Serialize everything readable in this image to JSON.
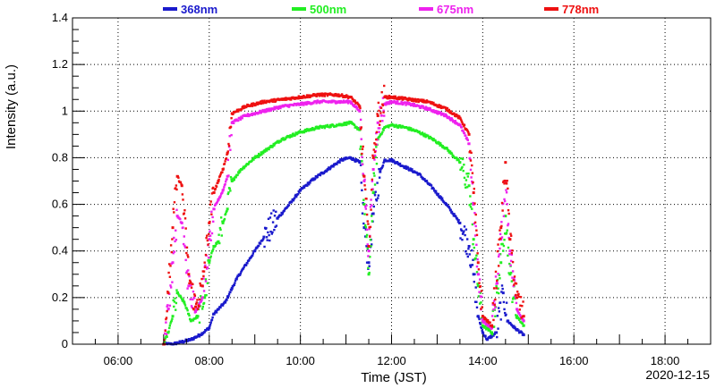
{
  "chart_data": {
    "type": "scatter",
    "xlabel": "Time (JST)",
    "ylabel": "Intensity (a.u.)",
    "date": "2020-12-15",
    "xlim": [
      5.0,
      19.0
    ],
    "ylim": [
      0,
      1.4
    ],
    "x_ticks": [
      6,
      8,
      10,
      12,
      14,
      16,
      18
    ],
    "x_tick_labels": [
      "06:00",
      "08:00",
      "10:00",
      "12:00",
      "14:00",
      "16:00",
      "18:00"
    ],
    "y_ticks": [
      0,
      0.2,
      0.4,
      0.6,
      0.8,
      1.0,
      1.2,
      1.4
    ],
    "y_tick_labels": [
      "0",
      "0.2",
      "0.4",
      "0.6",
      "0.8",
      "1",
      "1.2",
      "1.4"
    ],
    "grid": true,
    "legend_position": "top",
    "series": [
      {
        "name": "368nm",
        "color": "#1a1acc",
        "x": [
          7.0,
          7.2,
          7.4,
          7.6,
          7.8,
          8.0,
          8.1,
          8.2,
          8.35,
          8.5,
          8.6,
          8.8,
          9.0,
          9.2,
          9.5,
          9.8,
          10.0,
          10.3,
          10.6,
          10.9,
          11.1,
          11.3,
          11.4,
          11.5,
          11.6,
          11.75,
          11.85,
          12.0,
          12.3,
          12.6,
          12.9,
          13.2,
          13.5,
          13.7,
          13.8,
          13.9,
          14.0,
          14.1,
          14.3,
          14.45,
          14.55,
          14.7,
          14.9
        ],
        "y": [
          0.0,
          0.0,
          0.01,
          0.02,
          0.04,
          0.07,
          0.13,
          0.15,
          0.18,
          0.24,
          0.28,
          0.34,
          0.4,
          0.46,
          0.54,
          0.61,
          0.66,
          0.71,
          0.75,
          0.79,
          0.8,
          0.78,
          0.5,
          0.35,
          0.56,
          0.74,
          0.79,
          0.79,
          0.76,
          0.73,
          0.67,
          0.6,
          0.52,
          0.42,
          0.3,
          0.12,
          0.05,
          0.02,
          0.05,
          0.22,
          0.1,
          0.07,
          0.04
        ]
      },
      {
        "name": "500nm",
        "color": "#22ee22",
        "x": [
          7.0,
          7.1,
          7.2,
          7.3,
          7.45,
          7.6,
          7.75,
          7.9,
          8.0,
          8.1,
          8.2,
          8.3,
          8.4,
          8.5,
          8.7,
          9.0,
          9.3,
          9.6,
          10.0,
          10.4,
          10.8,
          11.1,
          11.3,
          11.4,
          11.5,
          11.6,
          11.7,
          11.85,
          12.0,
          12.3,
          12.6,
          12.9,
          13.2,
          13.5,
          13.7,
          13.8,
          13.9,
          14.0,
          14.2,
          14.4,
          14.5,
          14.6,
          14.75,
          14.9
        ],
        "y": [
          0.0,
          0.05,
          0.12,
          0.22,
          0.18,
          0.1,
          0.12,
          0.2,
          0.35,
          0.42,
          0.44,
          0.52,
          0.58,
          0.7,
          0.75,
          0.8,
          0.84,
          0.88,
          0.91,
          0.93,
          0.94,
          0.95,
          0.92,
          0.6,
          0.3,
          0.65,
          0.88,
          0.93,
          0.94,
          0.93,
          0.91,
          0.88,
          0.84,
          0.78,
          0.68,
          0.45,
          0.25,
          0.08,
          0.05,
          0.35,
          0.55,
          0.3,
          0.12,
          0.08
        ]
      },
      {
        "name": "675nm",
        "color": "#ee22ee",
        "x": [
          7.0,
          7.1,
          7.2,
          7.3,
          7.4,
          7.55,
          7.7,
          7.85,
          8.0,
          8.1,
          8.2,
          8.3,
          8.4,
          8.5,
          8.8,
          9.2,
          9.6,
          10.0,
          10.4,
          10.8,
          11.1,
          11.3,
          11.4,
          11.5,
          11.6,
          11.7,
          11.85,
          12.0,
          12.4,
          12.8,
          13.2,
          13.5,
          13.7,
          13.8,
          13.9,
          14.0,
          14.2,
          14.4,
          14.5,
          14.6,
          14.75,
          14.9
        ],
        "y": [
          0.0,
          0.15,
          0.35,
          0.55,
          0.52,
          0.25,
          0.14,
          0.2,
          0.45,
          0.58,
          0.62,
          0.66,
          0.72,
          0.95,
          0.98,
          1.0,
          1.02,
          1.03,
          1.04,
          1.04,
          1.04,
          1.0,
          0.7,
          0.4,
          0.75,
          0.95,
          1.03,
          1.04,
          1.03,
          1.01,
          0.98,
          0.94,
          0.86,
          0.6,
          0.3,
          0.1,
          0.07,
          0.45,
          0.7,
          0.4,
          0.15,
          0.1
        ]
      },
      {
        "name": "778nm",
        "color": "#ee1111",
        "x": [
          7.0,
          7.1,
          7.2,
          7.3,
          7.4,
          7.55,
          7.7,
          7.85,
          8.0,
          8.1,
          8.2,
          8.3,
          8.4,
          8.5,
          8.8,
          9.2,
          9.6,
          10.0,
          10.4,
          10.8,
          11.1,
          11.3,
          11.4,
          11.5,
          11.6,
          11.7,
          11.85,
          12.0,
          12.4,
          12.8,
          13.2,
          13.5,
          13.7,
          13.8,
          13.9,
          14.0,
          14.2,
          14.4,
          14.5,
          14.6,
          14.75,
          14.9
        ],
        "y": [
          0.0,
          0.22,
          0.5,
          0.72,
          0.68,
          0.3,
          0.16,
          0.25,
          0.52,
          0.65,
          0.7,
          0.75,
          0.82,
          0.99,
          1.02,
          1.04,
          1.05,
          1.06,
          1.07,
          1.07,
          1.06,
          1.02,
          0.72,
          0.42,
          0.8,
          0.98,
          1.06,
          1.06,
          1.05,
          1.04,
          1.01,
          0.97,
          0.9,
          0.65,
          0.35,
          0.12,
          0.08,
          0.5,
          0.78,
          0.45,
          0.2,
          0.12
        ]
      }
    ]
  }
}
